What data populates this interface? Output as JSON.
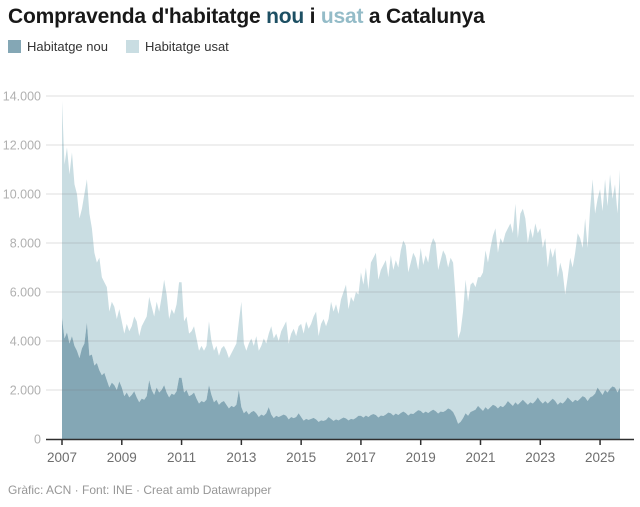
{
  "title": {
    "part1": "Compravenda d'habitatge ",
    "nou_word": "nou",
    "part2": " i ",
    "usat_word": "usat",
    "part3": " a Catalunya",
    "nou_color": "#1d4f63",
    "usat_color": "#94bcc8"
  },
  "legend": [
    {
      "label": "Habitatge nou",
      "color": "#84a7b5"
    },
    {
      "label": "Habitatge usat",
      "color": "#c9dde2"
    }
  ],
  "footer": "Gràfic: ACN · Font: INE · Creat amb Datawrapper",
  "colors": {
    "series_nou": "#84a7b5",
    "series_usat": "#c9dde2",
    "gridline": "rgba(110,110,110,0.22)",
    "axis_line": "#2f2f2f",
    "y_tick_label": "#b0b0b0",
    "x_tick_label": "#6e6e6e",
    "footer_text": "#979797"
  },
  "chart_data": {
    "type": "area",
    "stacked": true,
    "title": "Compravenda d'habitatge nou i usat a Catalunya",
    "xlabel": "",
    "ylabel": "",
    "x_unit": "month",
    "x_start": "2007-01",
    "x_end": "2025-09",
    "x_tick_labels": [
      "2007",
      "2009",
      "2011",
      "2013",
      "2015",
      "2017",
      "2019",
      "2021",
      "2023",
      "2025"
    ],
    "y_ticks": [
      0,
      2000,
      4000,
      6000,
      8000,
      10000,
      12000,
      14000
    ],
    "y_tick_labels": [
      "0",
      "2.000",
      "4.000",
      "6.000",
      "8.000",
      "10.000",
      "12.000",
      "14.000"
    ],
    "ylim": [
      0,
      14000
    ],
    "grid": true,
    "legend_position": "top-left",
    "series": [
      {
        "name": "Habitatge nou",
        "color": "#84a7b5",
        "values": [
          4950,
          4100,
          4350,
          3900,
          4200,
          3800,
          3600,
          3300,
          3700,
          3900,
          4750,
          3400,
          3450,
          3000,
          3100,
          2800,
          2600,
          2700,
          2400,
          2100,
          2300,
          2200,
          2000,
          2350,
          2100,
          1750,
          1900,
          1700,
          1800,
          1950,
          1700,
          1500,
          1650,
          1600,
          1750,
          2400,
          2000,
          1800,
          2100,
          1900,
          2000,
          2200,
          1900,
          1700,
          1850,
          1800,
          1950,
          2500,
          2500,
          1900,
          2000,
          1750,
          1800,
          1900,
          1650,
          1450,
          1550,
          1500,
          1600,
          2200,
          1800,
          1500,
          1600,
          1400,
          1500,
          1550,
          1400,
          1250,
          1350,
          1300,
          1400,
          2000,
          1300,
          1050,
          1150,
          1000,
          1100,
          1150,
          1050,
          900,
          1000,
          950,
          1050,
          1300,
          1000,
          850,
          950,
          900,
          950,
          1000,
          950,
          800,
          900,
          850,
          900,
          1050,
          900,
          750,
          820,
          780,
          820,
          860,
          800,
          700,
          760,
          740,
          780,
          900,
          820,
          740,
          800,
          760,
          820,
          880,
          840,
          760,
          820,
          800,
          860,
          950,
          950,
          880,
          960,
          900,
          980,
          1020,
          980,
          880,
          960,
          940,
          1000,
          1080,
          1050,
          960,
          1040,
          980,
          1060,
          1120,
          1060,
          960,
          1040,
          1020,
          1100,
          1180,
          1150,
          1050,
          1120,
          1060,
          1140,
          1200,
          1140,
          1040,
          1120,
          1100,
          1160,
          1250,
          1200,
          1100,
          900,
          620,
          700,
          850,
          1050,
          950,
          1100,
          1150,
          1200,
          1350,
          1250,
          1150,
          1300,
          1200,
          1300,
          1400,
          1350,
          1250,
          1350,
          1300,
          1400,
          1550,
          1450,
          1350,
          1500,
          1400,
          1500,
          1600,
          1500,
          1400,
          1500,
          1450,
          1550,
          1700,
          1550,
          1450,
          1550,
          1450,
          1550,
          1650,
          1550,
          1400,
          1500,
          1450,
          1550,
          1700,
          1600,
          1500,
          1600,
          1550,
          1650,
          1750,
          1700,
          1550,
          1700,
          1750,
          1850,
          2100,
          1950,
          1800,
          2000,
          1900,
          2050,
          2150,
          2100,
          1900,
          2100
        ]
      },
      {
        "name": "Habitatge usat",
        "color": "#c9dde2",
        "values": [
          8850,
          7100,
          7550,
          6900,
          7500,
          6600,
          6400,
          5700,
          5700,
          6100,
          5850,
          5800,
          5150,
          4600,
          4100,
          4600,
          4000,
          3700,
          3800,
          3100,
          3300,
          3200,
          2900,
          2950,
          2700,
          2550,
          2800,
          2700,
          2800,
          3050,
          3100,
          2700,
          2950,
          3200,
          3250,
          3400,
          3400,
          3200,
          3500,
          3300,
          3800,
          4300,
          4000,
          3200,
          3450,
          3300,
          3550,
          3900,
          3900,
          2900,
          3000,
          2550,
          2600,
          2700,
          2450,
          2150,
          2250,
          2100,
          2200,
          2600,
          2200,
          2100,
          2200,
          2000,
          2200,
          2250,
          2200,
          2050,
          2150,
          2400,
          2500,
          2800,
          4300,
          2850,
          2450,
          2900,
          3000,
          2650,
          3150,
          2700,
          2800,
          3150,
          2850,
          3000,
          3600,
          3250,
          3350,
          3100,
          3450,
          3600,
          3850,
          3100,
          3400,
          3650,
          3300,
          3550,
          3800,
          3550,
          3980,
          3720,
          3880,
          4140,
          4400,
          3500,
          3940,
          4160,
          3820,
          4000,
          4780,
          4460,
          4700,
          4340,
          4880,
          5120,
          5460,
          4540,
          4980,
          4800,
          5140,
          4950,
          5850,
          5420,
          6040,
          5200,
          6220,
          6380,
          6620,
          5620,
          5940,
          6160,
          6300,
          5520,
          6450,
          5940,
          6260,
          6020,
          6640,
          6980,
          6840,
          5840,
          6160,
          6580,
          6300,
          5720,
          6650,
          6050,
          6380,
          6140,
          6760,
          7000,
          6860,
          5860,
          6180,
          6600,
          6340,
          5750,
          6200,
          6100,
          4900,
          3480,
          3700,
          4350,
          5450,
          4650,
          5200,
          5250,
          5000,
          5250,
          5350,
          5650,
          6400,
          6000,
          6500,
          6900,
          7250,
          6350,
          6850,
          6700,
          7000,
          7050,
          7350,
          7050,
          8100,
          6800,
          7700,
          7800,
          7500,
          6600,
          7100,
          6750,
          7250,
          6700,
          7050,
          6350,
          6650,
          5550,
          6250,
          5750,
          6250,
          5200,
          5700,
          5350,
          4350,
          4900,
          5800,
          5500,
          6000,
          6850,
          6550,
          6050,
          7300,
          6250,
          7700,
          8850,
          7350,
          7700,
          8250,
          7500,
          8600,
          7600,
          8750,
          7650,
          8300,
          7300,
          8900
        ]
      }
    ]
  }
}
